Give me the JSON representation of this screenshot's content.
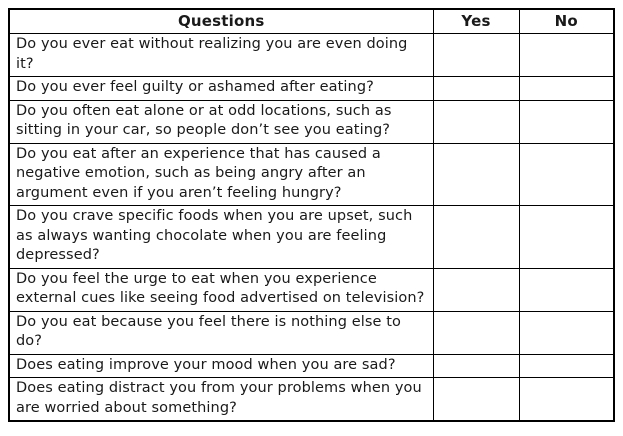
{
  "table": {
    "headers": {
      "question": "Questions",
      "yes": "Yes",
      "no": "No"
    },
    "rows": [
      "Do you ever eat without realizing you are even doing it?",
      "Do you ever feel guilty or ashamed after eating?",
      "Do you often eat alone or at odd locations, such as sitting in your car, so people don’t see you eating?",
      "Do you eat after an experience that has caused a negative emotion, such as being angry after an argument even if you aren’t feeling hungry?",
      "Do you crave specific foods when you are upset, such as always wanting chocolate when you are feeling depressed?",
      "Do you feel the urge to eat when you experience external cues like seeing food advertised on television?",
      "Do you eat because you feel there is nothing else to do?",
      "Does eating improve your mood when you are sad?",
      "Does eating distract you from your problems when you are worried about something?"
    ]
  },
  "colors": {
    "border": "#000000",
    "text": "#1a1a1a",
    "background": "#ffffff"
  }
}
